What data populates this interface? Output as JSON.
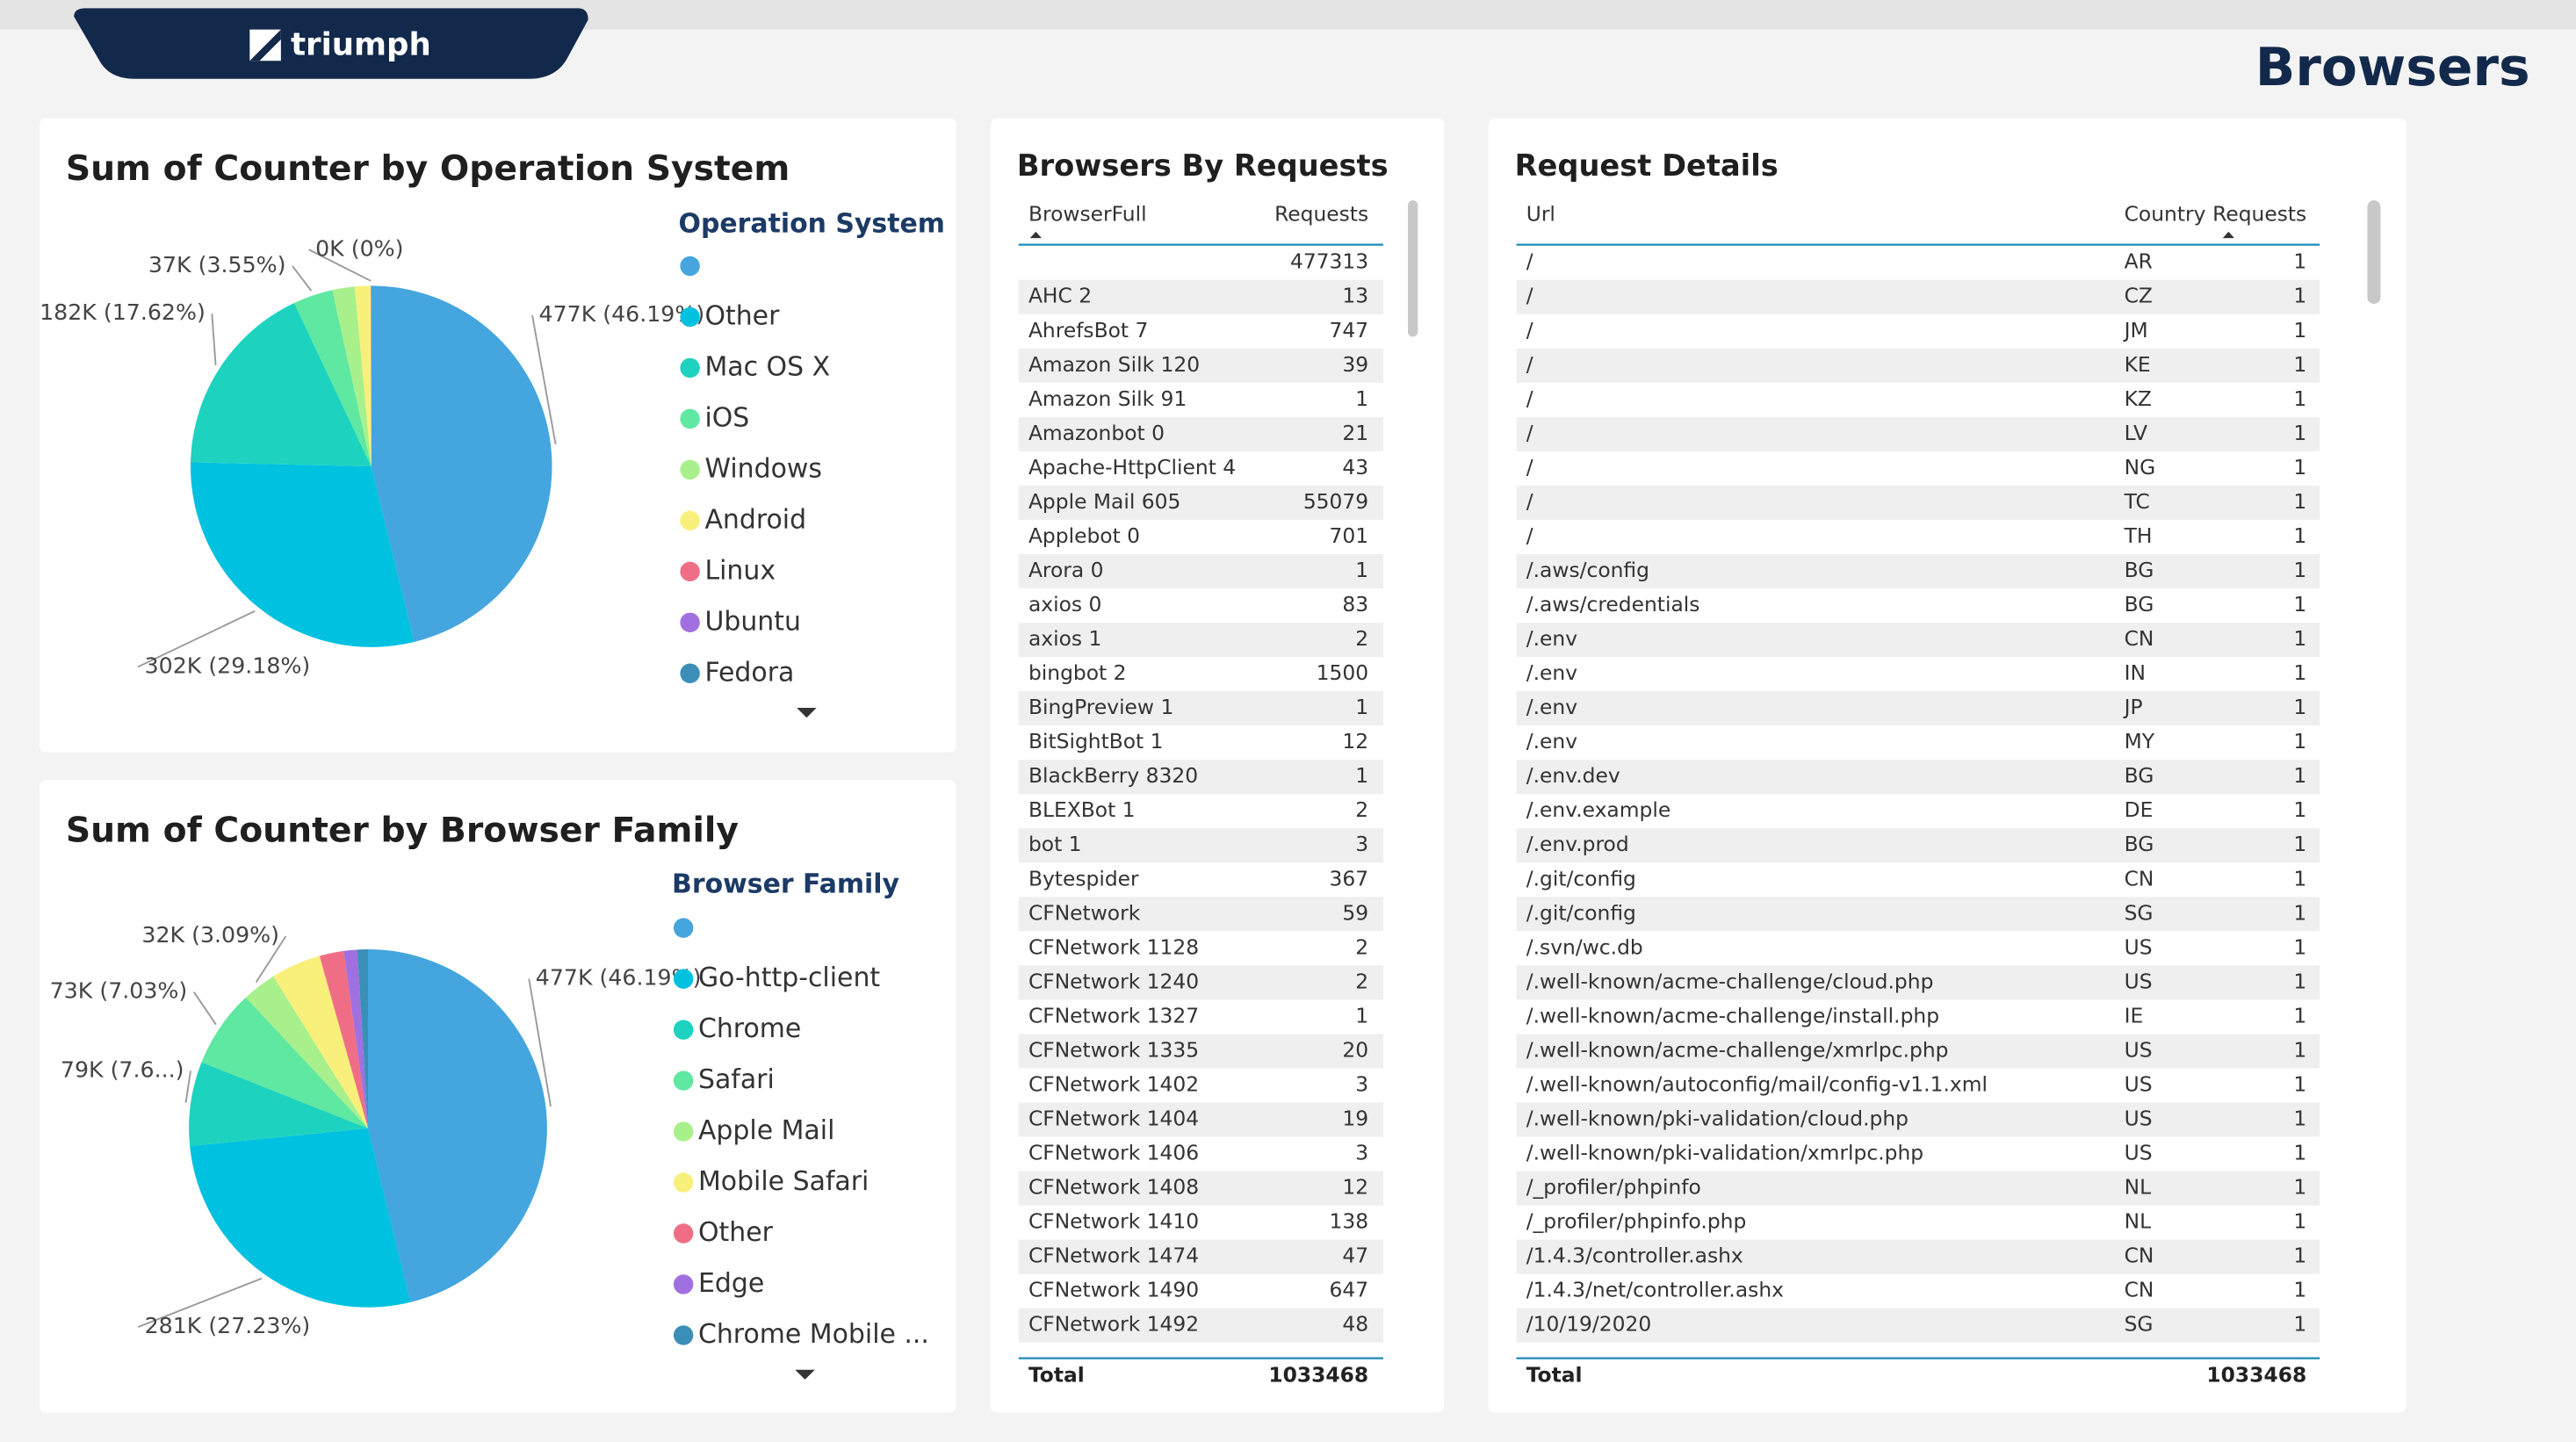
{
  "header": {
    "logo": "triumph",
    "title": "Browsers"
  },
  "chart_data": [
    {
      "type": "pie",
      "title": "Sum of Counter by Operation System",
      "legend_title": "Operation System",
      "categories": [
        null,
        "Other",
        "Mac OS X",
        "iOS",
        "Windows",
        "Android",
        "Linux",
        "Ubuntu",
        "Fedora"
      ],
      "values": [
        46.19,
        29.18,
        17.62,
        3.55,
        2.0,
        1.4,
        0.03,
        0.02,
        0.01
      ],
      "value_labels": [
        "477K (46.19%)",
        "302K (29.18%)",
        "182K (17.62%)",
        "37K (3.55%)",
        null,
        null,
        "0K (0%)",
        null,
        null
      ],
      "colors": [
        "#45a5df",
        "#00c1e0",
        "#1dd3bf",
        "#5ee8a1",
        "#a8f08c",
        "#f8f07a",
        "#f06e85",
        "#a070e0",
        "#3a8fb8"
      ]
    },
    {
      "type": "pie",
      "title": "Sum of Counter by Browser Family",
      "legend_title": "Browser Family",
      "categories": [
        null,
        "Go-http-client",
        "Chrome",
        "Safari",
        "Apple Mail",
        "Mobile Safari",
        "Other",
        "Edge",
        "Chrome Mobile ..."
      ],
      "values": [
        46.19,
        27.23,
        7.6,
        7.03,
        3.09,
        4.5,
        2.2,
        1.2,
        0.96
      ],
      "value_labels": [
        "477K (46.19%)",
        "281K (27.23%)",
        "79K (7.6...)",
        "73K (7.03%)",
        "32K (3.09%)",
        null,
        null,
        null,
        null
      ],
      "colors": [
        "#45a5df",
        "#00c1e0",
        "#1dd3bf",
        "#5ee8a1",
        "#a8f08c",
        "#f8f07a",
        "#f06e85",
        "#a070e0",
        "#3a8fb8"
      ]
    }
  ],
  "tables": [
    {
      "title": "Browsers By Requests",
      "columns": [
        "BrowserFull",
        "Requests"
      ],
      "rows": [
        [
          null,
          477313
        ],
        [
          "AHC 2",
          13
        ],
        [
          "AhrefsBot 7",
          747
        ],
        [
          "Amazon Silk 120",
          39
        ],
        [
          "Amazon Silk 91",
          1
        ],
        [
          "Amazonbot 0",
          21
        ],
        [
          "Apache-HttpClient 4",
          43
        ],
        [
          "Apple Mail 605",
          55079
        ],
        [
          "Applebot 0",
          701
        ],
        [
          "Arora 0",
          1
        ],
        [
          "axios 0",
          83
        ],
        [
          "axios 1",
          2
        ],
        [
          "bingbot 2",
          1500
        ],
        [
          "BingPreview 1",
          1
        ],
        [
          "BitSightBot 1",
          12
        ],
        [
          "BlackBerry 8320",
          1
        ],
        [
          "BLEXBot 1",
          2
        ],
        [
          "bot 1",
          3
        ],
        [
          "Bytespider",
          367
        ],
        [
          "CFNetwork",
          59
        ],
        [
          "CFNetwork 1128",
          2
        ],
        [
          "CFNetwork 1240",
          2
        ],
        [
          "CFNetwork 1327",
          1
        ],
        [
          "CFNetwork 1335",
          20
        ],
        [
          "CFNetwork 1402",
          3
        ],
        [
          "CFNetwork 1404",
          19
        ],
        [
          "CFNetwork 1406",
          3
        ],
        [
          "CFNetwork 1408",
          12
        ],
        [
          "CFNetwork 1410",
          138
        ],
        [
          "CFNetwork 1474",
          47
        ],
        [
          "CFNetwork 1490",
          647
        ],
        [
          "CFNetwork 1492",
          48
        ]
      ],
      "total": {
        "label": "Total",
        "value": 1033468
      }
    },
    {
      "title": "Request Details",
      "columns": [
        "Url",
        "Country",
        "Requests"
      ],
      "rows": [
        [
          "/",
          "AR",
          1
        ],
        [
          "/",
          "CZ",
          1
        ],
        [
          "/",
          "JM",
          1
        ],
        [
          "/",
          "KE",
          1
        ],
        [
          "/",
          "KZ",
          1
        ],
        [
          "/",
          "LV",
          1
        ],
        [
          "/",
          "NG",
          1
        ],
        [
          "/",
          "TC",
          1
        ],
        [
          "/",
          "TH",
          1
        ],
        [
          "/.aws/config",
          "BG",
          1
        ],
        [
          "/.aws/credentials",
          "BG",
          1
        ],
        [
          "/.env",
          "CN",
          1
        ],
        [
          "/.env",
          "IN",
          1
        ],
        [
          "/.env",
          "JP",
          1
        ],
        [
          "/.env",
          "MY",
          1
        ],
        [
          "/.env.dev",
          "BG",
          1
        ],
        [
          "/.env.example",
          "DE",
          1
        ],
        [
          "/.env.prod",
          "BG",
          1
        ],
        [
          "/.git/config",
          "CN",
          1
        ],
        [
          "/.git/config",
          "SG",
          1
        ],
        [
          "/.svn/wc.db",
          "US",
          1
        ],
        [
          "/.well-known/acme-challenge/cloud.php",
          "US",
          1
        ],
        [
          "/.well-known/acme-challenge/install.php",
          "IE",
          1
        ],
        [
          "/.well-known/acme-challenge/xmrlpc.php",
          "US",
          1
        ],
        [
          "/.well-known/autoconfig/mail/config-v1.1.xml",
          "US",
          1
        ],
        [
          "/.well-known/pki-validation/cloud.php",
          "US",
          1
        ],
        [
          "/.well-known/pki-validation/xmrlpc.php",
          "US",
          1
        ],
        [
          "/_profiler/phpinfo",
          "NL",
          1
        ],
        [
          "/_profiler/phpinfo.php",
          "NL",
          1
        ],
        [
          "/1.4.3/controller.ashx",
          "CN",
          1
        ],
        [
          "/1.4.3/net/controller.ashx",
          "CN",
          1
        ],
        [
          "/10/19/2020",
          "SG",
          1
        ]
      ],
      "total": {
        "label": "Total",
        "value": 1033468
      }
    }
  ]
}
